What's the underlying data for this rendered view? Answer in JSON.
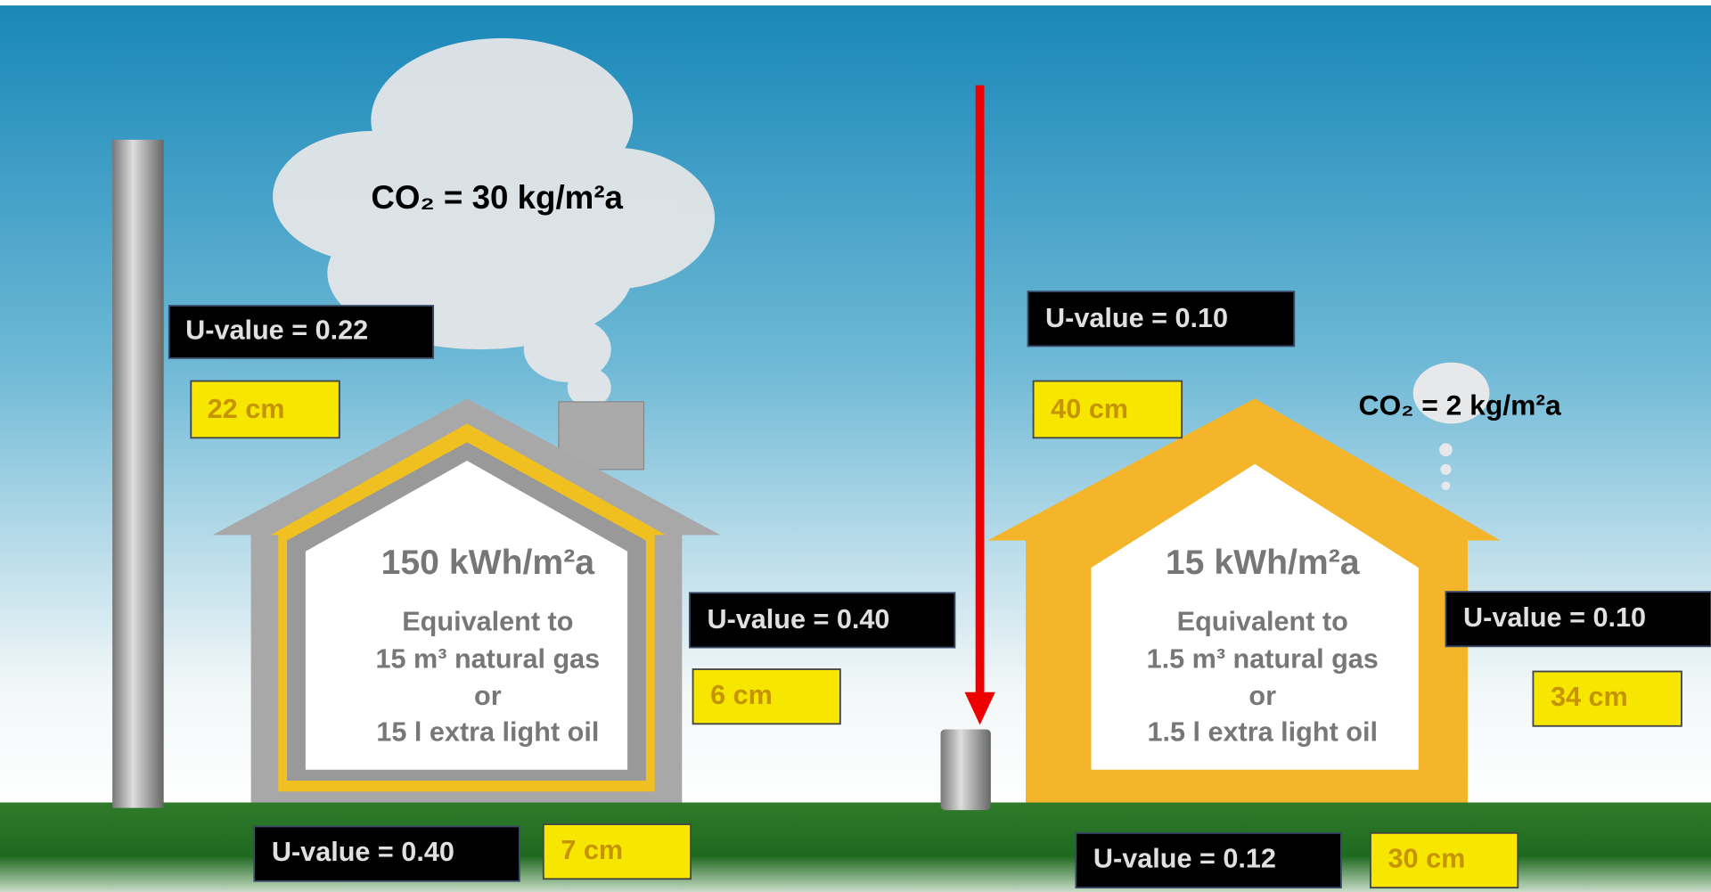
{
  "left_house": {
    "co2": "CO₂ = 30 kg/m²a",
    "energy": "150 kWh/m²a",
    "equivalent": [
      "Equivalent to",
      "15 m³ natural gas",
      "or",
      "15 l extra light oil"
    ],
    "roof": {
      "u_value": "U-value = 0.22",
      "thickness": "22 cm"
    },
    "wall": {
      "u_value": "U-value = 0.40",
      "thickness": "6 cm"
    },
    "floor": {
      "u_value": "U-value = 0.40",
      "thickness": "7 cm"
    }
  },
  "right_house": {
    "co2": "CO₂ = 2 kg/m²a",
    "energy": "15 kWh/m²a",
    "equivalent": [
      "Equivalent to",
      "1.5 m³ natural gas",
      "or",
      "1.5 l extra light oil"
    ],
    "roof": {
      "u_value": "U-value = 0.10",
      "thickness": "40 cm"
    },
    "wall": {
      "u_value": "U-value = 0.10",
      "thickness": "34 cm"
    },
    "floor": {
      "u_value": "U-value = 0.12",
      "thickness": "30 cm"
    }
  }
}
